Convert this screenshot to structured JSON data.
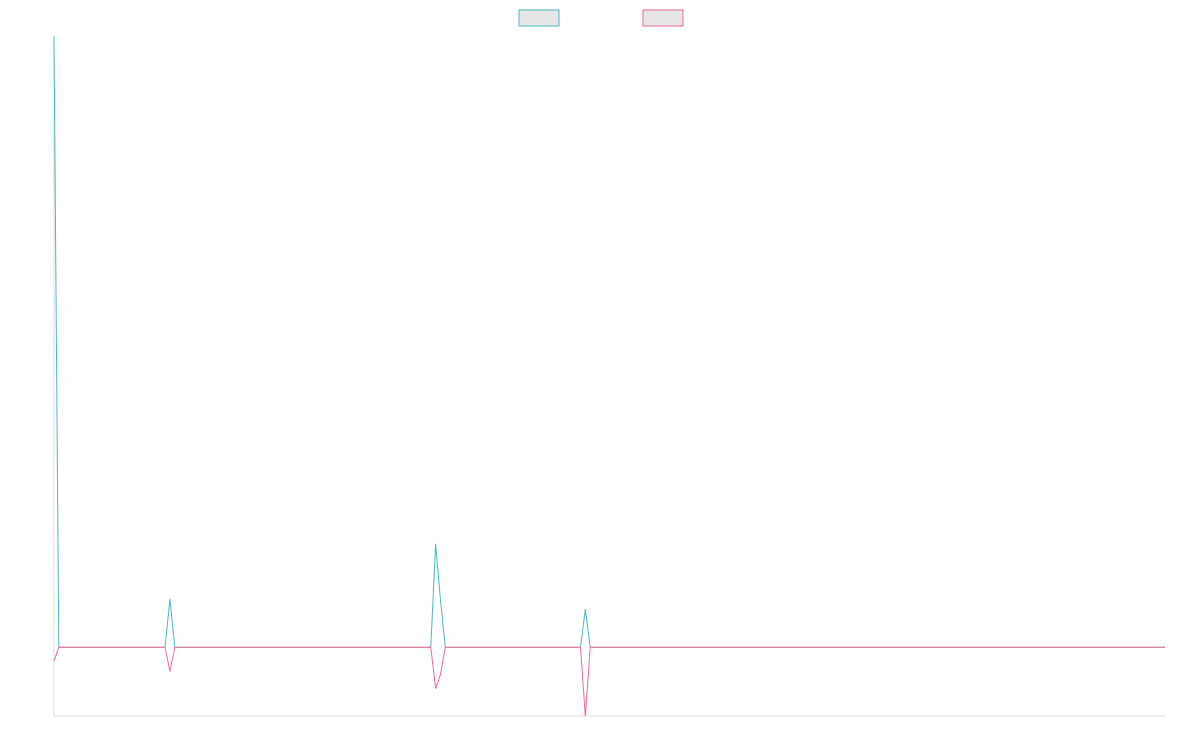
{
  "chart_data": {
    "type": "line",
    "title": "",
    "xlabel": "",
    "ylabel": "",
    "grid": false,
    "legend": {
      "placement": "top-center",
      "fill": "#e6e6e6"
    },
    "x_range": [
      0,
      230
    ],
    "y_range": [
      -100,
      890
    ],
    "series": [
      {
        "name": "",
        "color": "#4bb8c2",
        "points": [
          [
            0,
            890
          ],
          [
            1,
            0
          ],
          [
            23,
            0
          ],
          [
            24,
            70
          ],
          [
            25,
            0
          ],
          [
            78,
            0
          ],
          [
            79,
            150
          ],
          [
            80,
            70
          ],
          [
            81,
            0
          ],
          [
            109,
            0
          ],
          [
            110,
            55
          ],
          [
            111,
            0
          ],
          [
            230,
            0
          ]
        ]
      },
      {
        "name": "",
        "color": "#f0698c",
        "points": [
          [
            0,
            -20
          ],
          [
            1,
            0
          ],
          [
            23,
            0
          ],
          [
            24,
            -35
          ],
          [
            25,
            0
          ],
          [
            78,
            0
          ],
          [
            79,
            -60
          ],
          [
            80,
            -40
          ],
          [
            81,
            0
          ],
          [
            109,
            0
          ],
          [
            110,
            -100
          ],
          [
            111,
            0
          ],
          [
            230,
            0
          ]
        ]
      }
    ]
  }
}
